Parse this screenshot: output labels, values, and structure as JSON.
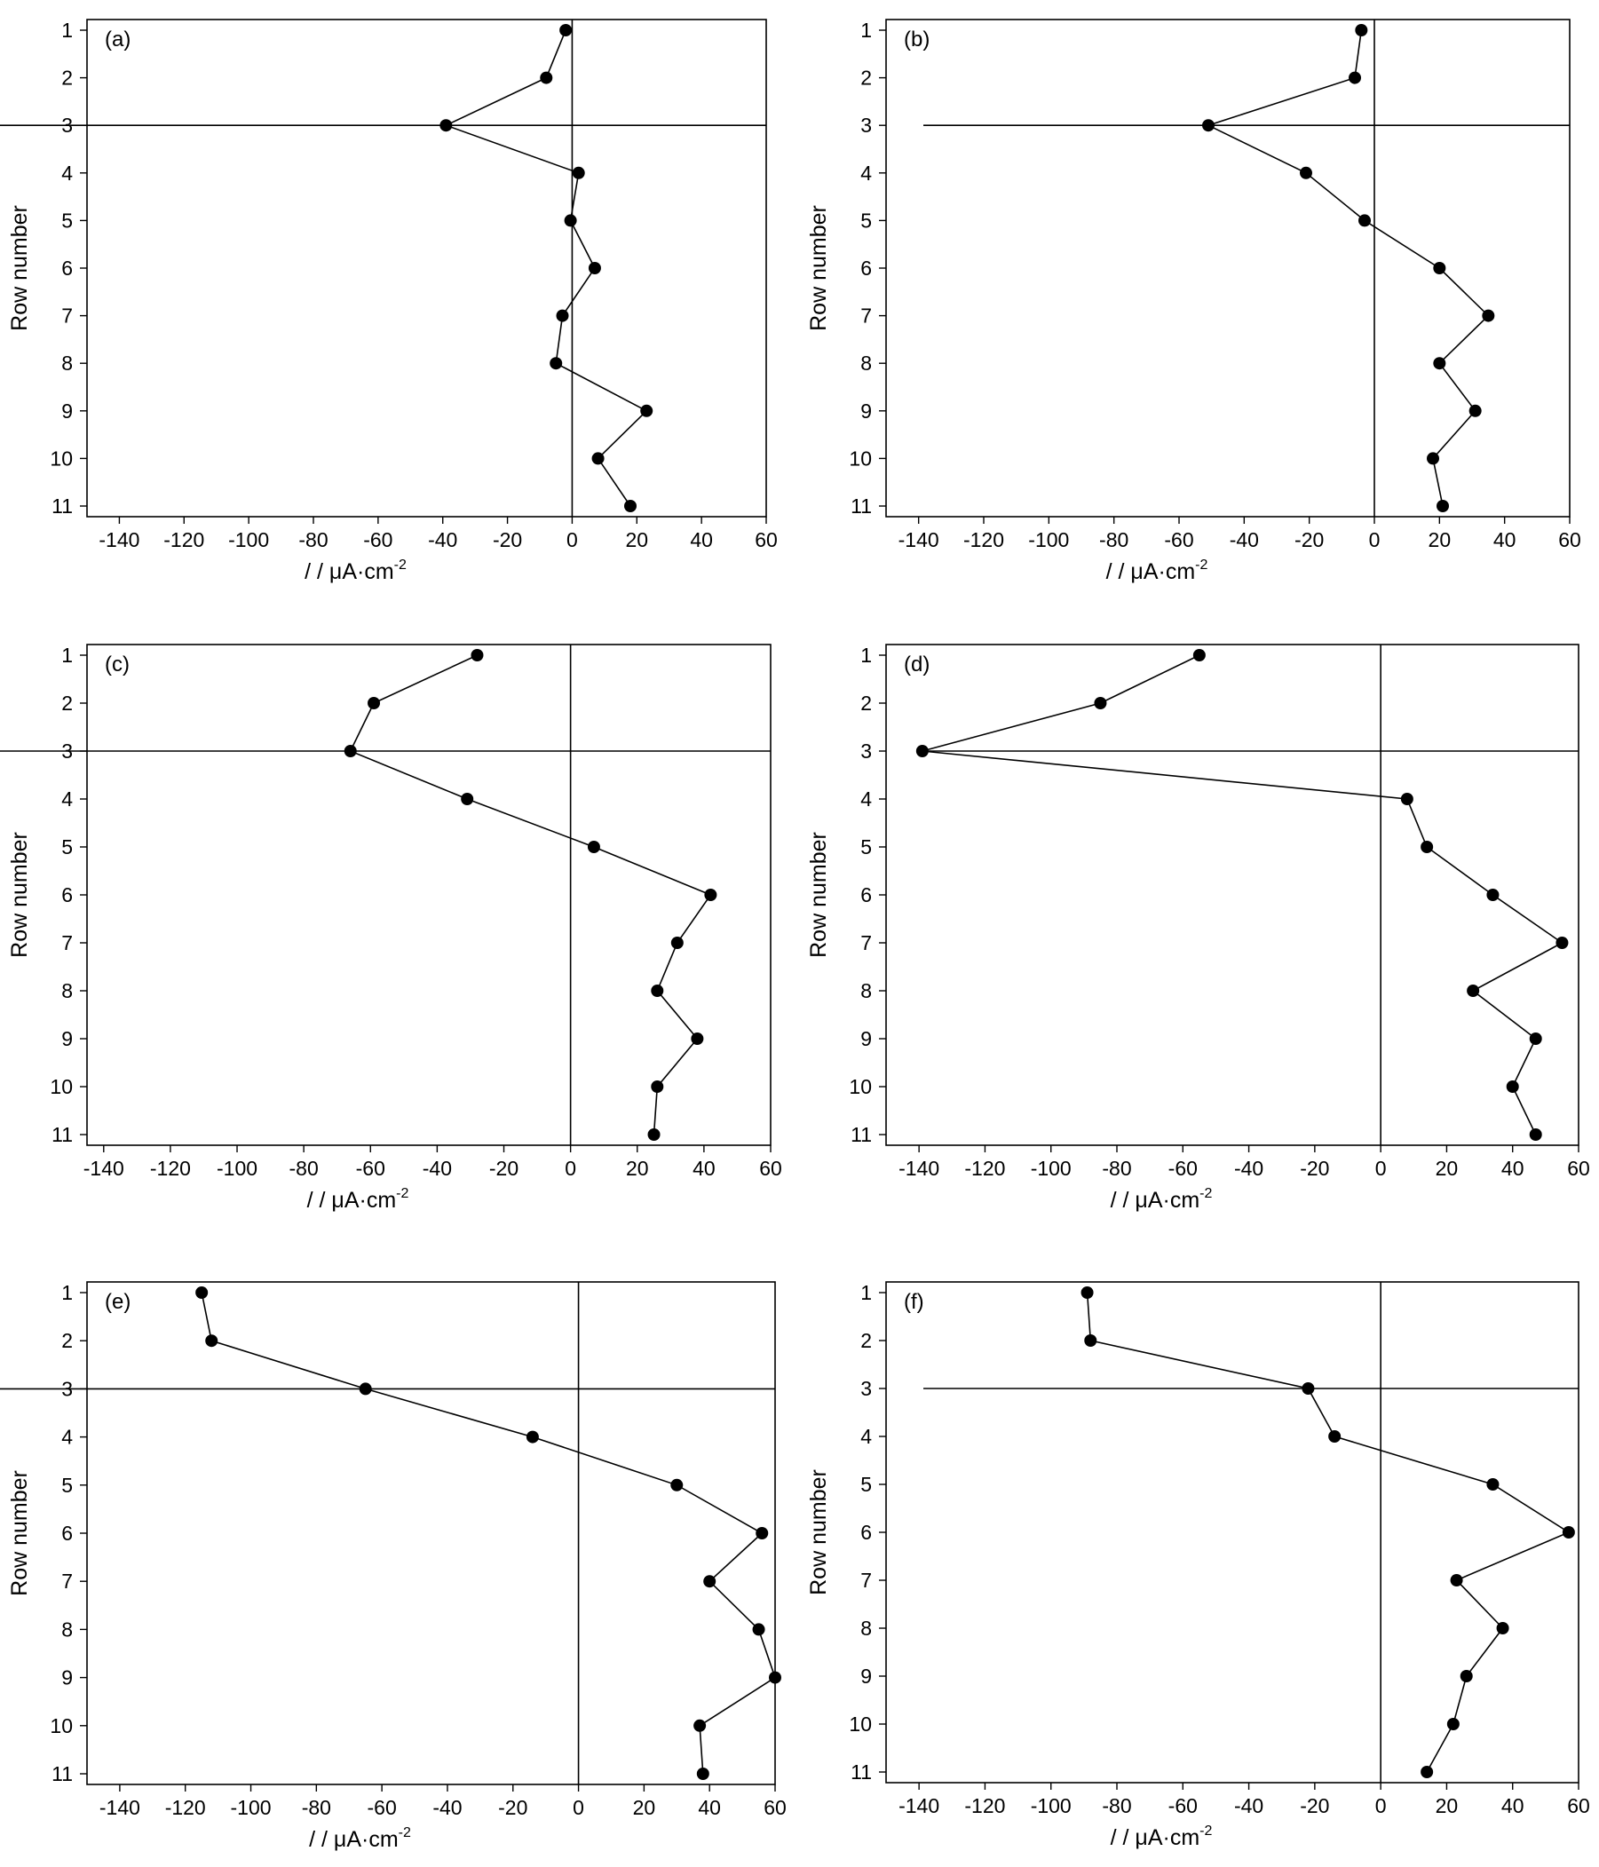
{
  "chart_data": [
    {
      "type": "line",
      "panel_label": "(a)",
      "xlabel": "/ / μA·cm",
      "xlabel_sup": "-2",
      "ylabel": "Row number",
      "xlim": [
        -150,
        60
      ],
      "ylim": [
        11,
        1
      ],
      "xticks": [
        -140,
        -120,
        -100,
        -80,
        -60,
        -40,
        -20,
        0,
        20,
        40,
        60
      ],
      "yticks": [
        1,
        2,
        3,
        4,
        5,
        6,
        7,
        8,
        9,
        10,
        11
      ],
      "reference_lines": {
        "x": 0,
        "y": 3
      },
      "series": [
        {
          "x": [
            -2,
            -8,
            -39,
            2,
            -0.5,
            7,
            -3,
            -5,
            23,
            8,
            18
          ],
          "y": [
            1,
            2,
            3,
            4,
            5,
            6,
            7,
            8,
            9,
            10,
            11
          ]
        }
      ]
    },
    {
      "type": "line",
      "panel_label": "(b)",
      "xlabel": "/ / μA·cm",
      "xlabel_sup": "-2",
      "ylabel": "Row number",
      "xlim": [
        -150,
        60
      ],
      "ylim": [
        11,
        1
      ],
      "xticks": [
        -140,
        -120,
        -100,
        -80,
        -60,
        -40,
        -20,
        0,
        20,
        40,
        60
      ],
      "yticks": [
        1,
        2,
        3,
        4,
        5,
        6,
        7,
        8,
        9,
        10,
        11
      ],
      "reference_lines": {
        "x": 0,
        "y": 3
      },
      "series": [
        {
          "x": [
            -4,
            -6,
            -51,
            -21,
            -3,
            20,
            35,
            20,
            31,
            18,
            21
          ],
          "y": [
            1,
            2,
            3,
            4,
            5,
            6,
            7,
            8,
            9,
            10,
            11
          ]
        }
      ]
    },
    {
      "type": "line",
      "panel_label": "(c)",
      "xlabel": "/ / μA·cm",
      "xlabel_sup": "-2",
      "ylabel": "Row number",
      "xlim": [
        -145,
        60
      ],
      "ylim": [
        11,
        1
      ],
      "xticks": [
        -140,
        -120,
        -100,
        -80,
        -60,
        -40,
        -20,
        0,
        20,
        40,
        60
      ],
      "yticks": [
        1,
        2,
        3,
        4,
        5,
        6,
        7,
        8,
        9,
        10,
        11
      ],
      "reference_lines": {
        "x": 0,
        "y": 3
      },
      "series": [
        {
          "x": [
            -28,
            -59,
            -66,
            -31,
            7,
            42,
            32,
            26,
            38,
            26,
            25
          ],
          "y": [
            1,
            2,
            3,
            4,
            5,
            6,
            7,
            8,
            9,
            10,
            11
          ]
        }
      ]
    },
    {
      "type": "line",
      "panel_label": "(d)",
      "xlabel": "/ / μA·cm",
      "xlabel_sup": "-2",
      "ylabel": "Row number",
      "xlim": [
        -150,
        60
      ],
      "ylim": [
        11,
        1
      ],
      "xticks": [
        -140,
        -120,
        -100,
        -80,
        -60,
        -40,
        -20,
        0,
        20,
        40,
        60
      ],
      "yticks": [
        1,
        2,
        3,
        4,
        5,
        6,
        7,
        8,
        9,
        10,
        11
      ],
      "reference_lines": {
        "x": 0,
        "y": 3
      },
      "series": [
        {
          "x": [
            -55,
            -85,
            -139,
            8,
            14,
            34,
            55,
            28,
            47,
            40,
            47
          ],
          "y": [
            1,
            2,
            3,
            4,
            5,
            6,
            7,
            8,
            9,
            10,
            11
          ]
        }
      ]
    },
    {
      "type": "line",
      "panel_label": "(e)",
      "xlabel": "/ / μA·cm",
      "xlabel_sup": "-2",
      "ylabel": "Row number",
      "xlim": [
        -150,
        60
      ],
      "ylim": [
        11,
        1
      ],
      "xticks": [
        -140,
        -120,
        -100,
        -80,
        -60,
        -40,
        -20,
        0,
        20,
        40,
        60
      ],
      "yticks": [
        1,
        2,
        3,
        4,
        5,
        6,
        7,
        8,
        9,
        10,
        11
      ],
      "reference_lines": {
        "x": 0,
        "y": 3
      },
      "series": [
        {
          "x": [
            -115,
            -112,
            -65,
            -14,
            30,
            56,
            40,
            55,
            60,
            37,
            38
          ],
          "y": [
            1,
            2,
            3,
            4,
            5,
            6,
            7,
            8,
            9,
            10,
            11
          ]
        }
      ]
    },
    {
      "type": "line",
      "panel_label": "(f)",
      "xlabel": "/ / μA·cm",
      "xlabel_sup": "-2",
      "ylabel": "Row number",
      "xlim": [
        -150,
        60
      ],
      "ylim": [
        11,
        1
      ],
      "xticks": [
        -140,
        -120,
        -100,
        -80,
        -60,
        -40,
        -20,
        0,
        20,
        40,
        60
      ],
      "yticks": [
        1,
        2,
        3,
        4,
        5,
        6,
        7,
        8,
        9,
        10,
        11
      ],
      "reference_lines": {
        "x": 0,
        "y": 3
      },
      "series": [
        {
          "x": [
            -89,
            -88,
            -22,
            -14,
            34,
            57,
            23,
            37,
            26,
            22,
            14
          ],
          "y": [
            1,
            2,
            3,
            4,
            5,
            6,
            7,
            8,
            9,
            10,
            11
          ]
        }
      ]
    }
  ]
}
